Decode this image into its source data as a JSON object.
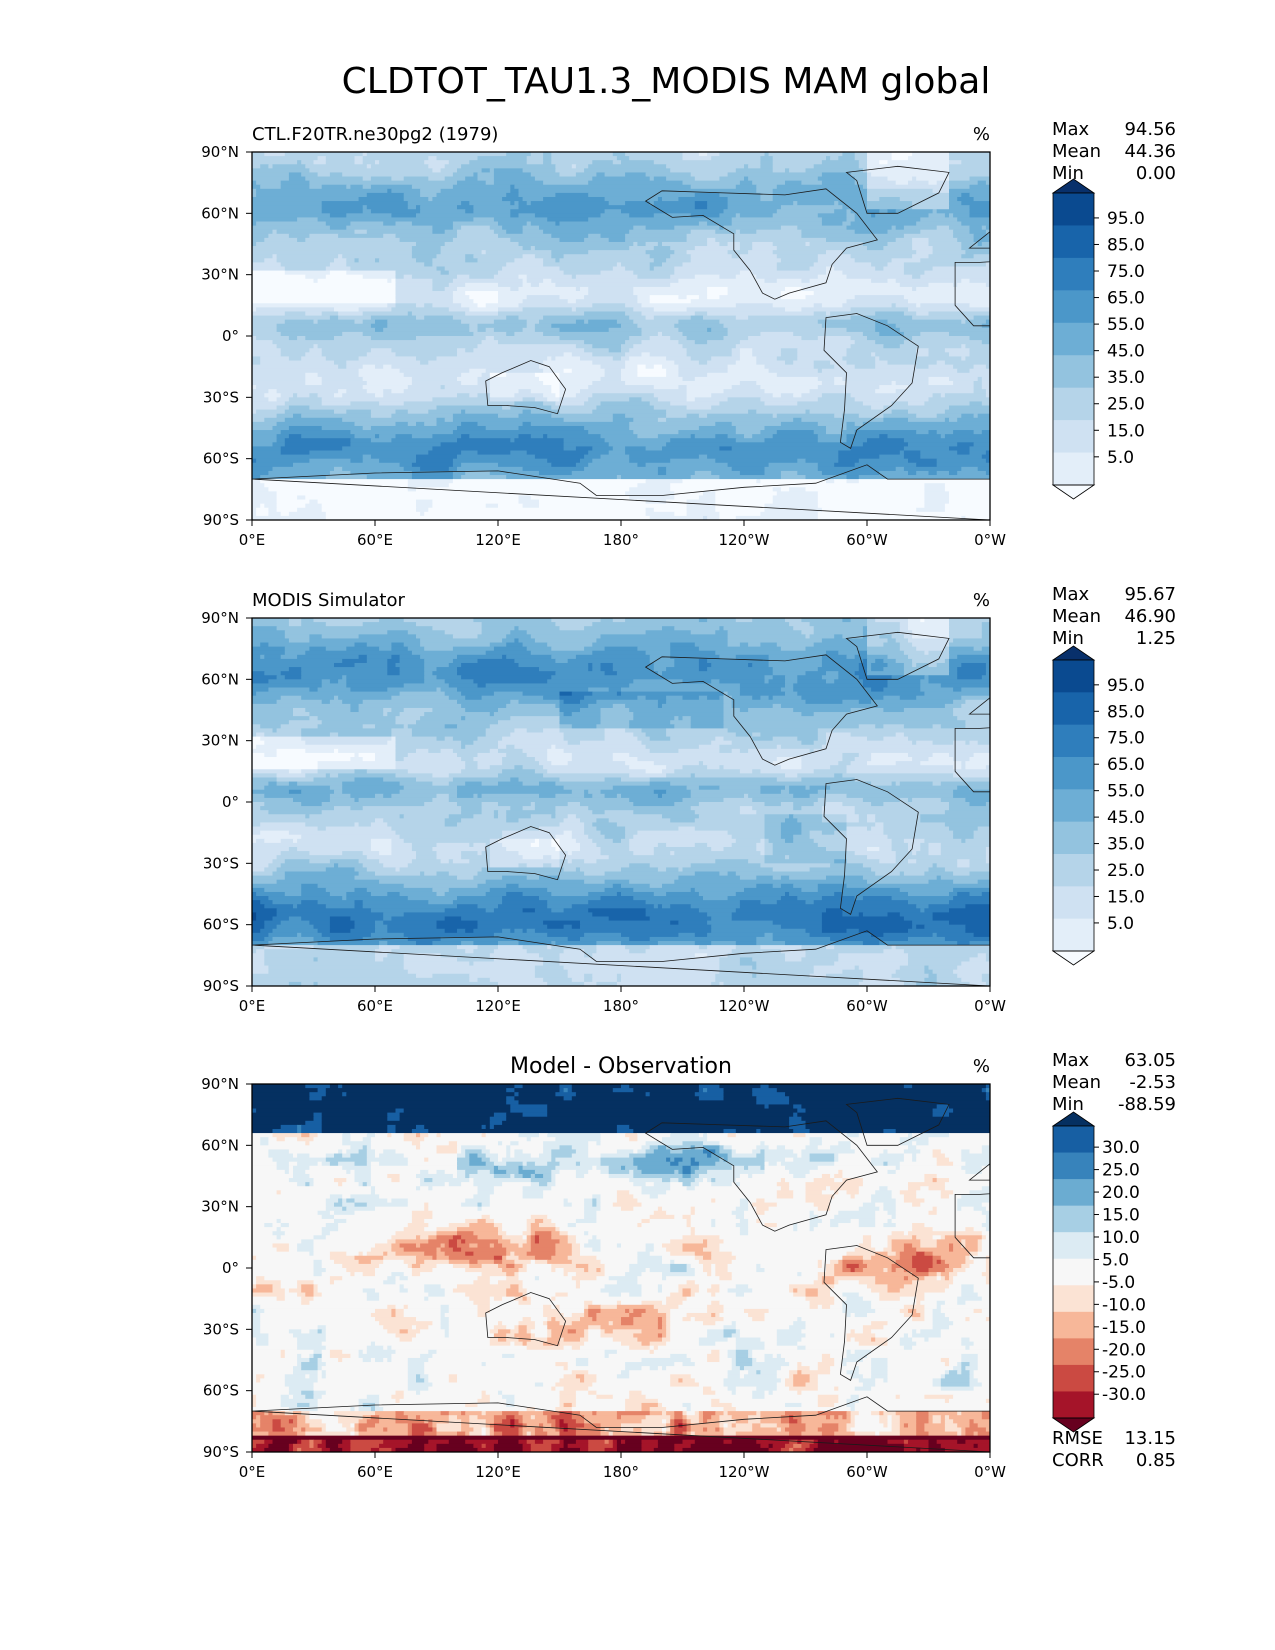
{
  "figure": {
    "title": "CLDTOT_TAU1.3_MODIS MAM global"
  },
  "axes": {
    "lat_ticks": [
      "90°N",
      "60°N",
      "30°N",
      "0°",
      "30°S",
      "60°S",
      "90°S"
    ],
    "lon_ticks": [
      "0°E",
      "60°E",
      "120°E",
      "180°",
      "120°W",
      "60°W",
      "0°W"
    ]
  },
  "colors": {
    "blues": [
      "#f7fbff",
      "#e3eef9",
      "#cfe1f2",
      "#b5d4e9",
      "#93c3df",
      "#6daed5",
      "#4b97c9",
      "#2f7ebc",
      "#1864aa",
      "#0a4a90",
      "#08306b"
    ],
    "diverging": [
      "#67001f",
      "#a51429",
      "#cb4a42",
      "#e58368",
      "#f7b799",
      "#fbe3d4",
      "#f7f7f7",
      "#dcebf3",
      "#a7cfe4",
      "#6bacd1",
      "#3783bb",
      "#175fa3",
      "#053061"
    ]
  },
  "chart_data": [
    {
      "type": "heatmap",
      "title": "CTL.F20TR.ne30pg2 (1979)",
      "units": "%",
      "stats": [
        {
          "label": "Max",
          "value": "94.56"
        },
        {
          "label": "Mean",
          "value": "44.36"
        },
        {
          "label": "Min",
          "value": "0.00"
        }
      ],
      "colorbar_ticks": [
        "95.0",
        "85.0",
        "75.0",
        "65.0",
        "55.0",
        "45.0",
        "35.0",
        "25.0",
        "15.0",
        "5.0"
      ],
      "xlim": [
        0,
        360
      ],
      "ylim": [
        -90,
        90
      ]
    },
    {
      "type": "heatmap",
      "title": "MODIS Simulator",
      "units": "%",
      "stats": [
        {
          "label": "Max",
          "value": "95.67"
        },
        {
          "label": "Mean",
          "value": "46.90"
        },
        {
          "label": "Min",
          "value": "1.25"
        }
      ],
      "colorbar_ticks": [
        "95.0",
        "85.0",
        "75.0",
        "65.0",
        "55.0",
        "45.0",
        "35.0",
        "25.0",
        "15.0",
        "5.0"
      ],
      "xlim": [
        0,
        360
      ],
      "ylim": [
        -90,
        90
      ]
    },
    {
      "type": "heatmap",
      "title": "Model - Observation",
      "units": "%",
      "stats": [
        {
          "label": "Max",
          "value": "63.05"
        },
        {
          "label": "Mean",
          "value": "-2.53"
        },
        {
          "label": "Min",
          "value": "-88.59"
        }
      ],
      "colorbar_ticks": [
        "30.0",
        "25.0",
        "20.0",
        "15.0",
        "10.0",
        "5.0",
        "-5.0",
        "-10.0",
        "-15.0",
        "-20.0",
        "-25.0",
        "-30.0"
      ],
      "metrics": [
        {
          "label": "RMSE",
          "value": "13.15"
        },
        {
          "label": "CORR",
          "value": "0.85"
        }
      ],
      "xlim": [
        0,
        360
      ],
      "ylim": [
        -90,
        90
      ]
    }
  ]
}
